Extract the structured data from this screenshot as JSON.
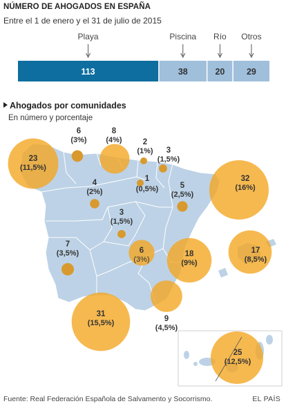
{
  "header": {
    "title": "NÚMERO DE AHOGADOS EN ESPAÑA",
    "subtitle": "Entre el 1 de enero y el 31 de julio de 2015"
  },
  "section": {
    "title": "Ahogados por comunidades",
    "subtitle": "En número y porcentaje"
  },
  "footer": {
    "source": "Fuente: Real Federación Española de Salvamento y Socorrismo.",
    "brand": "EL PAÍS"
  },
  "colors": {
    "primary_bar": "#0d6e9f",
    "secondary_bar": "#9fbfdb",
    "map_fill": "#bdd2e6",
    "bubble": "#f4a51e",
    "bubble_dot": "#d89a2e"
  },
  "chart_data": [
    {
      "type": "bar",
      "orientation": "horizontal-stacked",
      "title": "NÚMERO DE AHOGADOS EN ESPAÑA",
      "subtitle": "Entre el 1 de enero y el 31 de julio de 2015",
      "categories": [
        "Playa",
        "Piscina",
        "Río",
        "Otros"
      ],
      "values": [
        113,
        38,
        20,
        29
      ]
    },
    {
      "type": "bubble-map",
      "title": "Ahogados por comunidades",
      "subtitle": "En número y porcentaje",
      "regions": [
        {
          "value": 23,
          "pct": "(11,5%)"
        },
        {
          "value": 6,
          "pct": "(3%)"
        },
        {
          "value": 8,
          "pct": "(4%)"
        },
        {
          "value": 2,
          "pct": "(1%)"
        },
        {
          "value": 3,
          "pct": "(1,5%)"
        },
        {
          "value": 1,
          "pct": "(0,5%)"
        },
        {
          "value": 4,
          "pct": "(2%)"
        },
        {
          "value": 5,
          "pct": "(2,5%)"
        },
        {
          "value": 32,
          "pct": "(16%)"
        },
        {
          "value": 3,
          "pct": "(1,5%)"
        },
        {
          "value": 6,
          "pct": "(3%)"
        },
        {
          "value": 18,
          "pct": "(9%)"
        },
        {
          "value": 17,
          "pct": "(8,5%)"
        },
        {
          "value": 7,
          "pct": "(3,5%)"
        },
        {
          "value": 9,
          "pct": "(4,5%)"
        },
        {
          "value": 31,
          "pct": "(15,5%)"
        },
        {
          "value": 25,
          "pct": "(12,5%)"
        }
      ]
    }
  ]
}
